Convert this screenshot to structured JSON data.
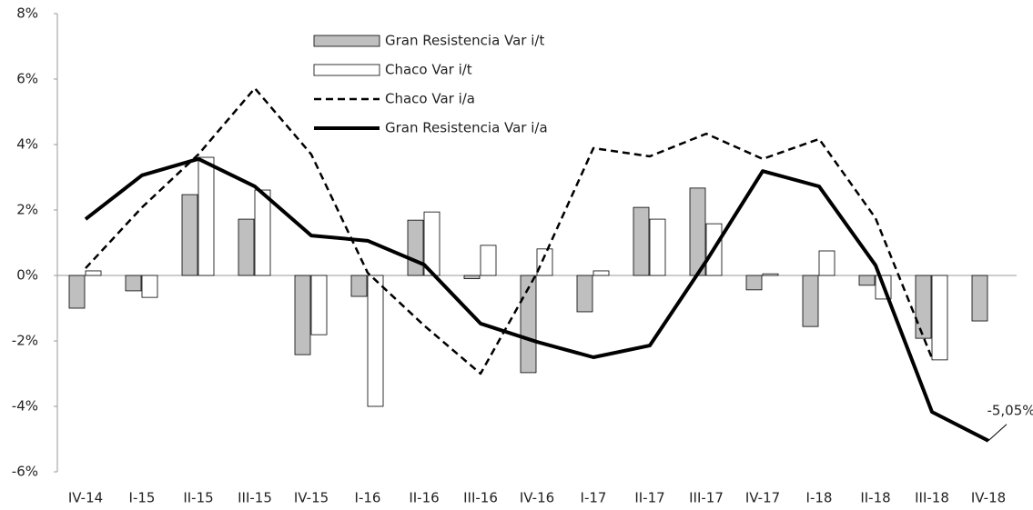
{
  "chart_data": {
    "type": "bar_line",
    "categories": [
      "IV-14",
      "I-15",
      "II-15",
      "III-15",
      "IV-15",
      "I-16",
      "II-16",
      "III-16",
      "IV-16",
      "I-17",
      "II-17",
      "III-17",
      "IV-17",
      "I-18",
      "II-18",
      "III-18",
      "IV-18"
    ],
    "ylim": [
      -6,
      8
    ],
    "yticks": [
      {
        "value": -6,
        "label": "-6%"
      },
      {
        "value": -4,
        "label": "-4%"
      },
      {
        "value": -2,
        "label": "-2%"
      },
      {
        "value": 0,
        "label": "0%"
      },
      {
        "value": 2,
        "label": "2%"
      },
      {
        "value": 4,
        "label": "4%"
      },
      {
        "value": 6,
        "label": "6%"
      },
      {
        "value": 8,
        "label": "8%"
      }
    ],
    "grid": false,
    "series": [
      {
        "name": "Gran Resistencia Var i/t",
        "kind": "bar",
        "color": "#bfbfbf",
        "values": [
          -1.0,
          -0.47,
          2.47,
          1.72,
          -2.42,
          -0.64,
          1.69,
          -0.1,
          -2.97,
          -1.11,
          2.08,
          2.67,
          -0.44,
          -1.56,
          -0.3,
          -1.92,
          -1.39
        ]
      },
      {
        "name": "Chaco Var i/t",
        "kind": "bar",
        "color": "#ffffff",
        "values": [
          0.14,
          -0.67,
          3.61,
          2.61,
          -1.81,
          -4.0,
          1.94,
          0.92,
          0.81,
          0.14,
          1.72,
          1.58,
          0.05,
          0.75,
          -0.72,
          -2.58,
          null
        ]
      },
      {
        "name": "Chaco Var i/a",
        "kind": "dashed",
        "color": "#000000",
        "values": [
          0.22,
          2.08,
          3.7,
          5.72,
          3.7,
          0.08,
          -1.53,
          -3.0,
          0.08,
          3.89,
          3.64,
          4.33,
          3.56,
          4.17,
          1.75,
          -2.53,
          null
        ]
      },
      {
        "name": "Gran Resistencia Var i/a",
        "kind": "line",
        "color": "#000000",
        "values": [
          1.72,
          3.06,
          3.56,
          2.72,
          1.22,
          1.06,
          0.33,
          -1.47,
          -2.03,
          -2.5,
          -2.14,
          0.44,
          3.19,
          2.72,
          0.31,
          -4.17,
          -5.05
        ],
        "value_labels": [
          null,
          null,
          null,
          null,
          null,
          null,
          null,
          null,
          null,
          null,
          null,
          null,
          null,
          null,
          null,
          null,
          "-5,05%"
        ]
      }
    ]
  }
}
